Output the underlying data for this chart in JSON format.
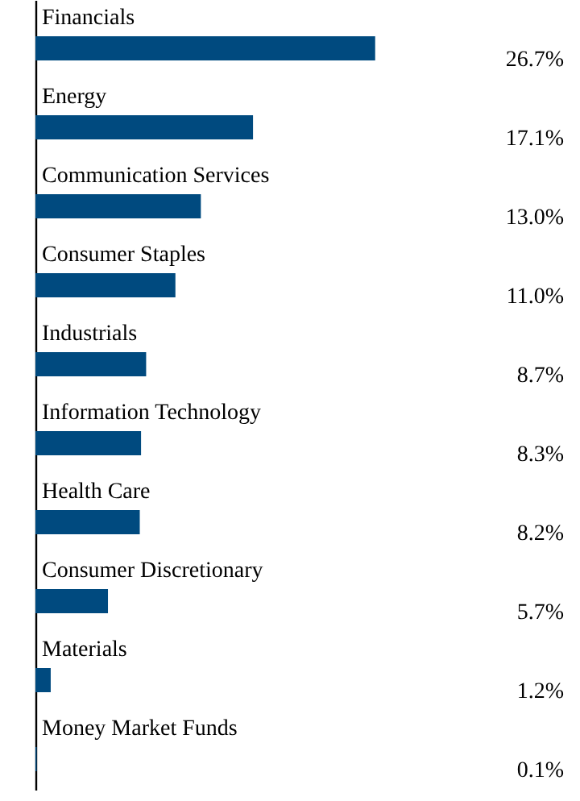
{
  "chart_data": {
    "type": "bar",
    "orientation": "horizontal",
    "categories": [
      "Financials",
      "Energy",
      "Communication Services",
      "Consumer Staples",
      "Industrials",
      "Information Technology",
      "Health Care",
      "Consumer Discretionary",
      "Materials",
      "Money Market Funds"
    ],
    "values": [
      26.7,
      17.1,
      13.0,
      11.0,
      8.7,
      8.3,
      8.2,
      5.7,
      1.2,
      0.1
    ],
    "value_labels": [
      "26.7%",
      "17.1%",
      "13.0%",
      "11.0%",
      "8.7%",
      "8.3%",
      "8.2%",
      "5.7%",
      "1.2%",
      "0.1%"
    ],
    "color": "#004a7f",
    "grid": false
  }
}
